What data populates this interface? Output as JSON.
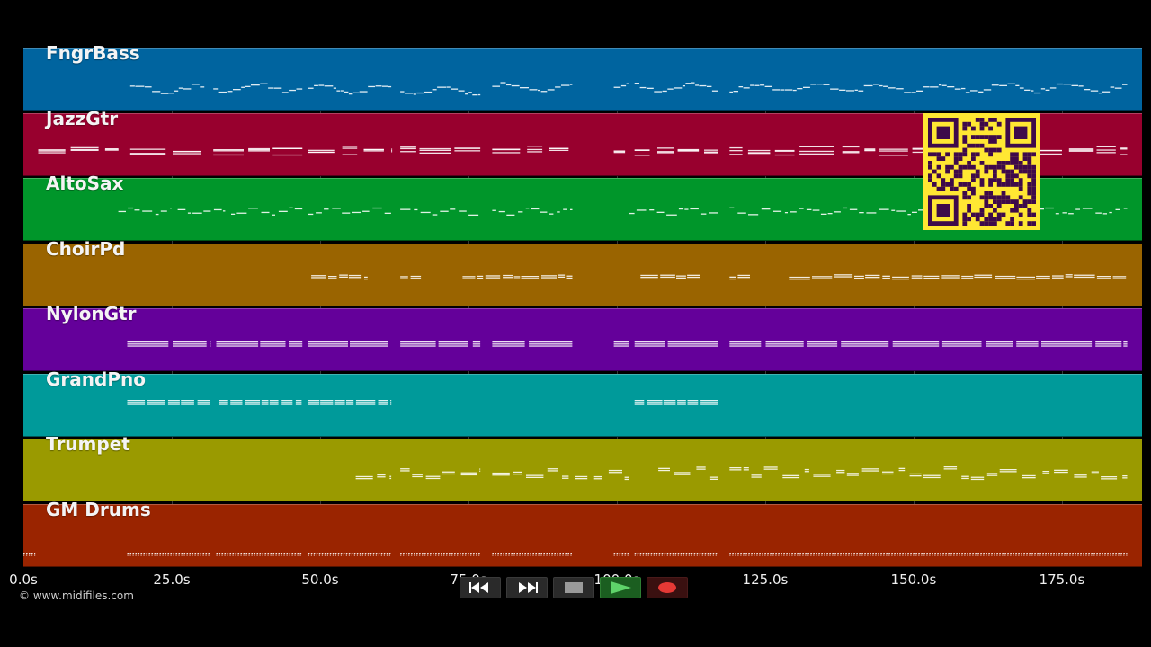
{
  "tracks": [
    {
      "name": "FngrBass",
      "color": "#00649f",
      "pattern": "bass",
      "segments": [
        [
          18,
          30.5
        ],
        [
          32,
          47
        ],
        [
          48,
          62
        ],
        [
          63.5,
          77
        ],
        [
          79,
          92.5
        ],
        [
          99.5,
          102
        ],
        [
          103,
          117
        ],
        [
          119,
          186
        ]
      ]
    },
    {
      "name": "JazzGtr",
      "color": "#98002e",
      "pattern": "chords",
      "segments": [
        [
          2.5,
          17
        ],
        [
          18,
          30.5
        ],
        [
          32,
          47
        ],
        [
          48,
          62
        ],
        [
          63.5,
          77
        ],
        [
          79,
          92.5
        ],
        [
          99.5,
          102
        ],
        [
          103,
          117
        ],
        [
          119,
          186
        ]
      ]
    },
    {
      "name": "AltoSax",
      "color": "#00962a",
      "pattern": "melody",
      "segments": [
        [
          16,
          25
        ],
        [
          26,
          34
        ],
        [
          35,
          47
        ],
        [
          48,
          62
        ],
        [
          63.5,
          77
        ],
        [
          79,
          92.5
        ],
        [
          102,
          117
        ],
        [
          119,
          186
        ]
      ]
    },
    {
      "name": "ChoirPd",
      "color": "#9a6400",
      "pattern": "pad",
      "segments": [
        [
          48.5,
          58
        ],
        [
          63.5,
          67
        ],
        [
          74,
          92.5
        ],
        [
          104,
          114
        ],
        [
          119,
          122.5
        ],
        [
          129,
          186
        ]
      ]
    },
    {
      "name": "NylonGtr",
      "color": "#64009a",
      "pattern": "strum",
      "segments": [
        [
          17.5,
          31.5
        ],
        [
          32.5,
          47
        ],
        [
          48,
          62
        ],
        [
          63.5,
          77
        ],
        [
          79,
          92.5
        ],
        [
          99.5,
          102
        ],
        [
          103,
          117
        ],
        [
          119,
          186
        ]
      ]
    },
    {
      "name": "GrandPno",
      "color": "#009a9a",
      "pattern": "piano",
      "segments": [
        [
          17.5,
          31.5
        ],
        [
          33,
          47
        ],
        [
          48,
          62
        ],
        [
          103,
          117
        ]
      ]
    },
    {
      "name": "Trumpet",
      "color": "#9a9a00",
      "pattern": "brass",
      "segments": [
        [
          56,
          62
        ],
        [
          63.5,
          77
        ],
        [
          79,
          92.5
        ],
        [
          93,
          102
        ],
        [
          107,
          117
        ],
        [
          119,
          186
        ]
      ]
    },
    {
      "name": "GM Drums",
      "color": "#9a2400",
      "pattern": "drums",
      "segments": [
        [
          0,
          2
        ],
        [
          17.5,
          31.5
        ],
        [
          32.5,
          47
        ],
        [
          48,
          62
        ],
        [
          63.5,
          77
        ],
        [
          79,
          92.5
        ],
        [
          99.5,
          102
        ],
        [
          103,
          117
        ],
        [
          119,
          186
        ]
      ]
    }
  ],
  "axis": {
    "max_seconds": 188.5,
    "ticks": [
      {
        "value": 0,
        "label": "0.0s"
      },
      {
        "value": 25,
        "label": "25.0s"
      },
      {
        "value": 50,
        "label": "50.0s"
      },
      {
        "value": 75,
        "label": "75.0s"
      },
      {
        "value": 100,
        "label": "100.0s"
      },
      {
        "value": 125,
        "label": "125.0s"
      },
      {
        "value": 150,
        "label": "150.0s"
      },
      {
        "value": 175,
        "label": "175.0s"
      }
    ]
  },
  "copyright": "© www.midifiles.com",
  "transport": [
    {
      "name": "rewind-button",
      "icon": "rewind-icon"
    },
    {
      "name": "fast-forward-button",
      "icon": "fast-forward-icon"
    },
    {
      "name": "stop-button",
      "icon": "stop-icon"
    },
    {
      "name": "play-button",
      "icon": "play-icon"
    },
    {
      "name": "record-button",
      "icon": "record-icon"
    }
  ],
  "qr_code": {
    "icon": "qr-code-icon",
    "color": "#ffe733",
    "module_color": "#3e0a4a"
  }
}
